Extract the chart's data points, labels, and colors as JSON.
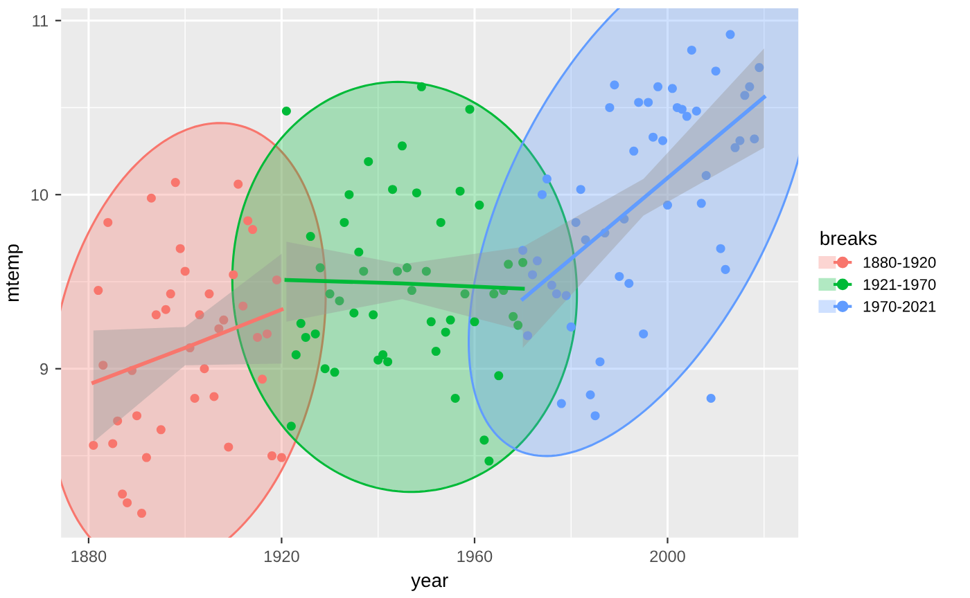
{
  "chart_data": {
    "type": "scatter",
    "xlabel": "year",
    "ylabel": "mtemp",
    "legend_title": "breaks",
    "legend": "right",
    "grid": true,
    "xlim": [
      1874.3,
      2027.1
    ],
    "ylim": [
      8.03,
      11.07
    ],
    "xticks": [
      1880,
      1920,
      1960,
      2000
    ],
    "yticks": [
      9,
      10,
      11
    ],
    "series": [
      {
        "name": "1880-1920",
        "marker": "circle",
        "color": "#f8766d",
        "x": [
          1881,
          1882,
          1883,
          1884,
          1885,
          1886,
          1887,
          1888,
          1889,
          1890,
          1891,
          1892,
          1893,
          1894,
          1895,
          1896,
          1897,
          1898,
          1899,
          1900,
          1901,
          1902,
          1903,
          1904,
          1905,
          1906,
          1907,
          1908,
          1909,
          1910,
          1911,
          1912,
          1913,
          1914,
          1915,
          1916,
          1917,
          1918,
          1919,
          1920
        ],
        "values": [
          8.56,
          9.45,
          9.02,
          9.84,
          8.57,
          8.7,
          8.28,
          8.23,
          8.99,
          8.73,
          8.17,
          8.49,
          9.98,
          9.31,
          8.65,
          9.34,
          9.43,
          10.07,
          9.69,
          9.56,
          9.12,
          8.83,
          9.31,
          9.0,
          9.43,
          8.84,
          9.23,
          9.28,
          8.55,
          9.54,
          10.06,
          9.36,
          9.85,
          9.8,
          9.18,
          8.94,
          9.2,
          8.5,
          9.51,
          8.49
        ]
      },
      {
        "name": "1921-1970",
        "marker": "circle",
        "color": "#00ba38",
        "x": [
          1921,
          1922,
          1923,
          1924,
          1925,
          1926,
          1927,
          1928,
          1929,
          1930,
          1931,
          1932,
          1933,
          1934,
          1935,
          1936,
          1937,
          1938,
          1939,
          1940,
          1941,
          1942,
          1943,
          1944,
          1945,
          1946,
          1947,
          1948,
          1949,
          1950,
          1951,
          1952,
          1953,
          1954,
          1955,
          1956,
          1957,
          1958,
          1959,
          1960,
          1961,
          1962,
          1963,
          1964,
          1965,
          1966,
          1967,
          1968,
          1969,
          1970
        ],
        "values": [
          10.48,
          8.67,
          9.08,
          9.26,
          9.18,
          9.76,
          9.2,
          9.58,
          9.0,
          9.43,
          8.98,
          9.39,
          9.84,
          10.0,
          9.32,
          9.67,
          9.56,
          10.19,
          9.31,
          9.05,
          9.08,
          9.04,
          10.03,
          9.56,
          10.28,
          9.58,
          9.45,
          10.01,
          10.62,
          9.56,
          9.27,
          9.1,
          9.84,
          9.21,
          9.28,
          8.83,
          10.02,
          9.43,
          10.49,
          9.27,
          9.94,
          8.59,
          8.47,
          9.43,
          8.96,
          9.45,
          9.6,
          9.3,
          9.25,
          9.61
        ]
      },
      {
        "name": "1970-2021",
        "marker": "circle",
        "color": "#619cff",
        "x": [
          1970,
          1971,
          1972,
          1973,
          1974,
          1975,
          1976,
          1977,
          1978,
          1979,
          1980,
          1981,
          1982,
          1983,
          1984,
          1985,
          1986,
          1987,
          1988,
          1989,
          1990,
          1991,
          1992,
          1993,
          1994,
          1995,
          1996,
          1997,
          1998,
          1999,
          2000,
          2001,
          2002,
          2003,
          2004,
          2005,
          2006,
          2007,
          2008,
          2009,
          2010,
          2011,
          2012,
          2013,
          2014,
          2015,
          2016,
          2017,
          2018,
          2019
        ],
        "values": [
          9.68,
          9.19,
          9.54,
          9.62,
          10.0,
          10.09,
          9.48,
          9.43,
          8.8,
          9.42,
          9.24,
          9.84,
          10.03,
          9.74,
          8.85,
          8.73,
          9.04,
          9.78,
          10.5,
          10.63,
          9.53,
          9.86,
          9.49,
          10.25,
          10.53,
          9.2,
          10.53,
          10.33,
          10.62,
          10.31,
          9.94,
          10.61,
          10.5,
          10.49,
          10.45,
          10.83,
          10.48,
          9.95,
          10.11,
          8.83,
          10.71,
          9.69,
          9.57,
          10.92,
          10.27,
          10.31,
          10.57,
          10.62,
          10.32,
          10.73
        ]
      },
      {
        "type": "line",
        "color": "#f8766d",
        "x": [
          1881,
          1900,
          1920
        ],
        "values": [
          8.92,
          9.12,
          9.34
        ],
        "lower": [
          8.58,
          9.02,
          9.03
        ],
        "upper": [
          9.22,
          9.24,
          9.66
        ]
      },
      {
        "type": "line",
        "color": "#00ba38",
        "x": [
          1921,
          1945,
          1970
        ],
        "values": [
          9.51,
          9.49,
          9.46
        ],
        "lower": [
          9.27,
          9.4,
          9.22
        ],
        "upper": [
          9.73,
          9.6,
          9.7
        ]
      },
      {
        "type": "line",
        "color": "#619cff",
        "x": [
          1970,
          1995,
          2020
        ],
        "values": [
          9.4,
          9.98,
          10.56
        ],
        "lower": [
          9.12,
          9.88,
          10.27
        ],
        "upper": [
          9.7,
          10.09,
          10.84
        ]
      }
    ]
  }
}
